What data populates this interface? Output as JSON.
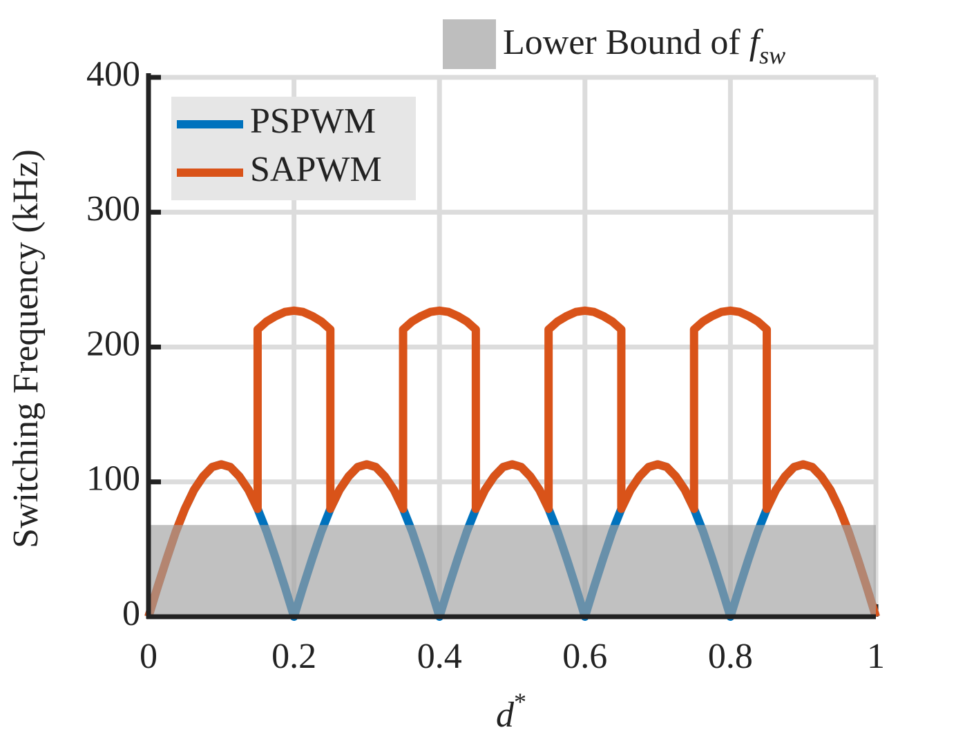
{
  "chart_data": {
    "type": "line",
    "xlabel": "d",
    "xlabel_superscript": "*",
    "ylabel": "Switching Frequency (kHz)",
    "xlim": [
      0,
      1
    ],
    "ylim": [
      0,
      400
    ],
    "xticks": [
      0,
      0.2,
      0.4,
      0.6,
      0.8,
      1
    ],
    "yticks": [
      0,
      100,
      200,
      300,
      400
    ],
    "grid": true,
    "legend": "upper left",
    "shaded_region": {
      "label": "Lower Bound of",
      "symbol": "f",
      "subscript": "sw",
      "ylim": [
        0,
        68
      ],
      "color": "#a0a0a0"
    },
    "series": [
      {
        "name": "PSPWM",
        "color": "#0072bd",
        "x": [
          0,
          0.0125,
          0.025,
          0.0375,
          0.05,
          0.0625,
          0.075,
          0.0875,
          0.1,
          0.1125,
          0.125,
          0.1375,
          0.15,
          0.1625,
          0.175,
          0.1875,
          0.2,
          0.2125,
          0.225,
          0.2375,
          0.25,
          0.2625,
          0.275,
          0.2875,
          0.3,
          0.3125,
          0.325,
          0.3375,
          0.35,
          0.3625,
          0.375,
          0.3875,
          0.4,
          0.4125,
          0.425,
          0.4375,
          0.45,
          0.4625,
          0.475,
          0.4875,
          0.5,
          0.5125,
          0.525,
          0.5375,
          0.55,
          0.5625,
          0.575,
          0.5875,
          0.6,
          0.6125,
          0.625,
          0.6375,
          0.65,
          0.6625,
          0.675,
          0.6875,
          0.7,
          0.7125,
          0.725,
          0.7375,
          0.75,
          0.7625,
          0.775,
          0.7875,
          0.8,
          0.8125,
          0.825,
          0.8375,
          0.85,
          0.8625,
          0.875,
          0.8875,
          0.9,
          0.9125,
          0.925,
          0.9375,
          0.95,
          0.9625,
          0.975,
          0.9875,
          1
        ],
        "values": [
          0,
          22,
          43,
          63,
          80,
          94,
          104,
          111,
          113,
          111,
          104,
          94,
          80,
          63,
          43,
          22,
          0,
          22,
          43,
          63,
          80,
          94,
          104,
          111,
          113,
          111,
          104,
          94,
          80,
          63,
          43,
          22,
          0,
          22,
          43,
          63,
          80,
          94,
          104,
          111,
          113,
          111,
          104,
          94,
          80,
          63,
          43,
          22,
          0,
          22,
          43,
          63,
          80,
          94,
          104,
          111,
          113,
          111,
          104,
          94,
          80,
          63,
          43,
          22,
          0,
          22,
          43,
          63,
          80,
          94,
          104,
          111,
          113,
          111,
          104,
          94,
          80,
          63,
          43,
          22,
          0
        ]
      },
      {
        "name": "SAPWM",
        "color": "#d95319",
        "x": [
          0,
          0.0125,
          0.025,
          0.0375,
          0.05,
          0.0625,
          0.075,
          0.0875,
          0.1,
          0.1125,
          0.125,
          0.1375,
          0.15,
          0.15,
          0.1625,
          0.175,
          0.1875,
          0.2,
          0.2125,
          0.225,
          0.2375,
          0.25,
          0.25,
          0.2625,
          0.275,
          0.2875,
          0.3,
          0.3125,
          0.325,
          0.3375,
          0.35,
          0.35,
          0.3625,
          0.375,
          0.3875,
          0.4,
          0.4125,
          0.425,
          0.4375,
          0.45,
          0.45,
          0.4625,
          0.475,
          0.4875,
          0.5,
          0.5125,
          0.525,
          0.5375,
          0.55,
          0.55,
          0.5625,
          0.575,
          0.5875,
          0.6,
          0.6125,
          0.625,
          0.6375,
          0.65,
          0.65,
          0.6625,
          0.675,
          0.6875,
          0.7,
          0.7125,
          0.725,
          0.7375,
          0.75,
          0.75,
          0.7625,
          0.775,
          0.7875,
          0.8,
          0.8125,
          0.825,
          0.8375,
          0.85,
          0.85,
          0.8625,
          0.875,
          0.8875,
          0.9,
          0.9125,
          0.925,
          0.9375,
          0.95,
          0.9625,
          0.975,
          0.9875,
          1
        ],
        "values": [
          0,
          22,
          43,
          63,
          80,
          94,
          104,
          111,
          113,
          111,
          104,
          94,
          80,
          213,
          219,
          223,
          226,
          227,
          226,
          223,
          219,
          213,
          80,
          94,
          104,
          111,
          113,
          111,
          104,
          94,
          80,
          213,
          219,
          223,
          226,
          227,
          226,
          223,
          219,
          213,
          80,
          94,
          104,
          111,
          113,
          111,
          104,
          94,
          80,
          213,
          219,
          223,
          226,
          227,
          226,
          223,
          219,
          213,
          80,
          94,
          104,
          111,
          113,
          111,
          104,
          94,
          80,
          213,
          219,
          223,
          226,
          227,
          226,
          223,
          219,
          213,
          80,
          94,
          104,
          111,
          113,
          111,
          104,
          94,
          80,
          63,
          43,
          22,
          0
        ]
      }
    ]
  }
}
